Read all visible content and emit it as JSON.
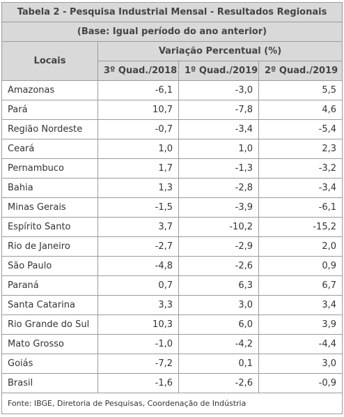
{
  "table": {
    "title": "Tabela 2 - Pesquisa Industrial Mensal - Resultados Regionais",
    "subtitle": "(Base: Igual período do ano anterior)",
    "header": {
      "locais": "Locais",
      "group": "Variação Percentual (%)",
      "columns": [
        "3º Quad./2018",
        "1º Quad./2019",
        "2º Quad./2019"
      ]
    },
    "rows": [
      {
        "local": "Amazonas",
        "values": [
          "-6,1",
          "-3,0",
          "5,5"
        ]
      },
      {
        "local": "Pará",
        "values": [
          "10,7",
          "-7,8",
          "4,6"
        ]
      },
      {
        "local": "Região Nordeste",
        "values": [
          "-0,7",
          "-3,4",
          "-5,4"
        ]
      },
      {
        "local": "Ceará",
        "values": [
          "1,0",
          "1,0",
          "2,3"
        ]
      },
      {
        "local": "Pernambuco",
        "values": [
          "1,7",
          "-1,3",
          "-3,2"
        ]
      },
      {
        "local": "Bahia",
        "values": [
          "1,3",
          "-2,8",
          "-3,4"
        ]
      },
      {
        "local": "Minas Gerais",
        "values": [
          "-1,5",
          "-3,9",
          "-6,1"
        ]
      },
      {
        "local": "Espírito Santo",
        "values": [
          "3,7",
          "-10,2",
          "-15,2"
        ]
      },
      {
        "local": "Rio de Janeiro",
        "values": [
          "-2,7",
          "-2,9",
          "2,0"
        ]
      },
      {
        "local": "São Paulo",
        "values": [
          "-4,8",
          "-2,6",
          "0,9"
        ]
      },
      {
        "local": "Paraná",
        "values": [
          "0,7",
          "6,3",
          "6,7"
        ]
      },
      {
        "local": "Santa Catarina",
        "values": [
          "3,3",
          "3,0",
          "3,4"
        ]
      },
      {
        "local": "Rio Grande do Sul",
        "values": [
          "10,3",
          "6,0",
          "3,9"
        ]
      },
      {
        "local": "Mato Grosso",
        "values": [
          "-1,0",
          "-4,2",
          "-4,4"
        ]
      },
      {
        "local": "Goiás",
        "values": [
          "-7,2",
          "0,1",
          "3,0"
        ]
      },
      {
        "local": "Brasil",
        "values": [
          "-1,6",
          "-2,6",
          "-0,9"
        ]
      }
    ],
    "source": "Fonte: IBGE, Diretoria de Pesquisas, Coordenação de Indústria"
  }
}
